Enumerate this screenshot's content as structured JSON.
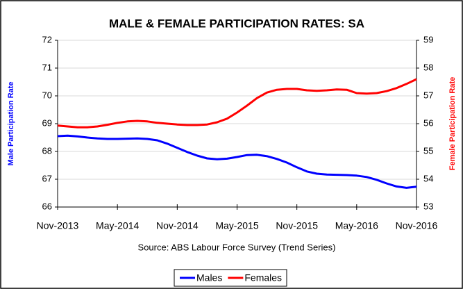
{
  "chart_data": {
    "type": "line",
    "title": "MALE & FEMALE PARTICIPATION RATES: SA",
    "source": "Source: ABS Labour Force Survey (Trend Series)",
    "ylabel": "Male Participation Rate",
    "y2label": "Female Participation Rate",
    "categories": [
      "Nov-2013",
      null,
      null,
      null,
      null,
      null,
      "May-2014",
      null,
      null,
      null,
      null,
      null,
      "Nov-2014",
      null,
      null,
      null,
      null,
      null,
      "May-2015",
      null,
      null,
      null,
      null,
      null,
      "Nov-2015",
      null,
      null,
      null,
      null,
      null,
      "May-2016",
      null,
      null,
      null,
      null,
      null,
      "Nov-2016"
    ],
    "series": [
      {
        "name": "Males",
        "color": "#0000ff",
        "values": [
          68.55,
          68.57,
          68.54,
          68.5,
          68.47,
          68.45,
          68.45,
          68.46,
          68.47,
          68.45,
          68.4,
          68.28,
          68.13,
          67.98,
          67.85,
          67.75,
          67.72,
          67.74,
          67.8,
          67.87,
          67.88,
          67.83,
          67.73,
          67.6,
          67.43,
          67.28,
          67.2,
          67.17,
          67.16,
          67.15,
          67.13,
          67.08,
          66.98,
          66.85,
          66.74,
          66.69,
          66.73
        ]
      },
      {
        "name": "Females",
        "color": "#ff0000",
        "axis": "y2",
        "values": [
          55.93,
          55.9,
          55.87,
          55.87,
          55.9,
          55.96,
          56.03,
          56.08,
          56.1,
          56.08,
          56.03,
          56.0,
          55.97,
          55.95,
          55.95,
          55.97,
          56.05,
          56.18,
          56.4,
          56.65,
          56.92,
          57.12,
          57.22,
          57.25,
          57.25,
          57.2,
          57.18,
          57.2,
          57.23,
          57.22,
          57.1,
          57.08,
          57.1,
          57.17,
          57.28,
          57.43,
          57.6
        ]
      }
    ],
    "ylim": [
      66,
      72
    ],
    "yticks": [
      66,
      67,
      68,
      69,
      70,
      71,
      72
    ],
    "y2lim": [
      53,
      59
    ],
    "y2ticks": [
      53,
      54,
      55,
      56,
      57,
      58,
      59
    ],
    "grid": true,
    "legend": "bottom"
  }
}
